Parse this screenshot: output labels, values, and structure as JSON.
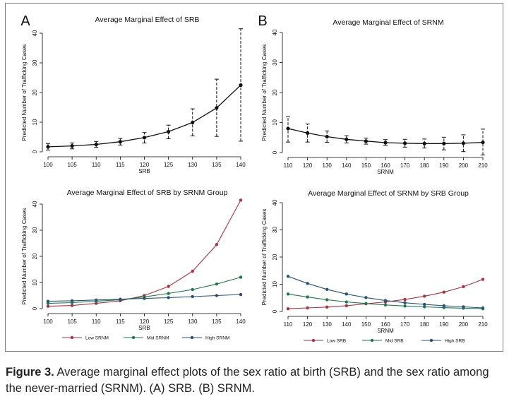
{
  "panel_letters": [
    "A",
    "B"
  ],
  "colors": {
    "low": "#b0303f",
    "mid": "#1e7a4a",
    "high": "#25537e",
    "single": "#111111"
  },
  "legend": [
    "Low SRNM",
    "Mid SRNM",
    "High SRNM"
  ],
  "legend_d": [
    "Low SRB",
    "Mid SRB",
    "High SRB"
  ],
  "caption": {
    "label": "Figure 3.",
    "text": "Average marginal effect plots of the sex ratio at birth (SRB) and the sex ratio among the never-married (SRNM). (A) SRB. (B) SRNM."
  },
  "chart_data": [
    {
      "type": "line",
      "title": "Average Marginal Effect of SRB",
      "xlabel": "SRB",
      "ylabel": "Predicted Number of Trafficking Cases",
      "x": [
        100,
        105,
        110,
        115,
        120,
        125,
        130,
        135,
        140
      ],
      "xlim": [
        100,
        140
      ],
      "ylim": [
        0,
        40
      ],
      "yticks": [
        0,
        10,
        20,
        30,
        40
      ],
      "series": [
        {
          "values": [
            1.7,
            2.0,
            2.5,
            3.4,
            4.8,
            6.8,
            9.9,
            14.8,
            22.5
          ],
          "ci_low": [
            0.6,
            1.0,
            1.5,
            2.3,
            3.0,
            4.4,
            5.4,
            5.2,
            3.6
          ],
          "ci_high": [
            2.8,
            3.0,
            3.5,
            4.5,
            6.5,
            9.0,
            14.5,
            24.5,
            41.5
          ]
        }
      ]
    },
    {
      "type": "line",
      "title": "Average Marginal Effect of SRNM",
      "xlabel": "SRNM",
      "ylabel": "Predicted Number of Trafficking Cases",
      "x": [
        110,
        120,
        130,
        140,
        150,
        160,
        170,
        180,
        190,
        200,
        210
      ],
      "xlim": [
        110,
        210
      ],
      "ylim": [
        0,
        40
      ],
      "yticks": [
        0,
        10,
        20,
        30,
        40
      ],
      "series": [
        {
          "values": [
            8.0,
            6.5,
            5.3,
            4.4,
            3.8,
            3.3,
            3.1,
            3.0,
            3.0,
            3.1,
            3.4
          ],
          "ci_low": [
            3.5,
            3.5,
            3.4,
            3.2,
            2.8,
            2.4,
            1.8,
            1.5,
            0.9,
            0.3,
            -0.8
          ],
          "ci_high": [
            12.0,
            9.5,
            7.2,
            5.6,
            4.8,
            4.3,
            4.4,
            4.5,
            5.1,
            5.9,
            7.8
          ]
        }
      ]
    },
    {
      "type": "line",
      "title": "Average Marginal Effect of SRB by SRNM Group",
      "xlabel": "SRB",
      "ylabel": "Predicted Number of Trafficking Cases",
      "x": [
        100,
        105,
        110,
        115,
        120,
        125,
        130,
        135,
        140
      ],
      "xlim": [
        100,
        140
      ],
      "ylim": [
        0,
        40
      ],
      "yticks": [
        0,
        10,
        20,
        30,
        40
      ],
      "series": [
        {
          "name": "Low SRNM",
          "values": [
            0.9,
            1.2,
            2.0,
            3.0,
            5.0,
            8.5,
            14.3,
            24.5,
            41.5
          ]
        },
        {
          "name": "Mid SRNM",
          "values": [
            2.0,
            2.3,
            2.8,
            3.4,
            4.5,
            5.8,
            7.3,
            9.4,
            12.0
          ]
        },
        {
          "name": "High SRNM",
          "values": [
            2.8,
            3.0,
            3.3,
            3.6,
            3.9,
            4.2,
            4.6,
            5.0,
            5.4
          ]
        }
      ]
    },
    {
      "type": "line",
      "title": "Average Marginal Effect of SRNM by SRB Group",
      "xlabel": "SRNM",
      "ylabel": "Predicted Number of Trafficking Cases",
      "x": [
        110,
        120,
        130,
        140,
        150,
        160,
        170,
        180,
        190,
        200,
        210
      ],
      "xlim": [
        110,
        210
      ],
      "ylim": [
        0,
        40
      ],
      "yticks": [
        0,
        10,
        20,
        30,
        40
      ],
      "series": [
        {
          "name": "Low SRB",
          "values": [
            1.0,
            1.3,
            1.6,
            2.1,
            2.8,
            3.5,
            4.4,
            5.6,
            7.1,
            9.1,
            11.8
          ]
        },
        {
          "name": "Mid SRB",
          "values": [
            6.4,
            5.3,
            4.3,
            3.5,
            2.9,
            2.4,
            2.0,
            1.7,
            1.4,
            1.2,
            1.0
          ]
        },
        {
          "name": "High SRB",
          "values": [
            12.9,
            10.3,
            8.1,
            6.4,
            5.1,
            4.0,
            3.2,
            2.6,
            2.1,
            1.7,
            1.3
          ]
        }
      ]
    }
  ]
}
